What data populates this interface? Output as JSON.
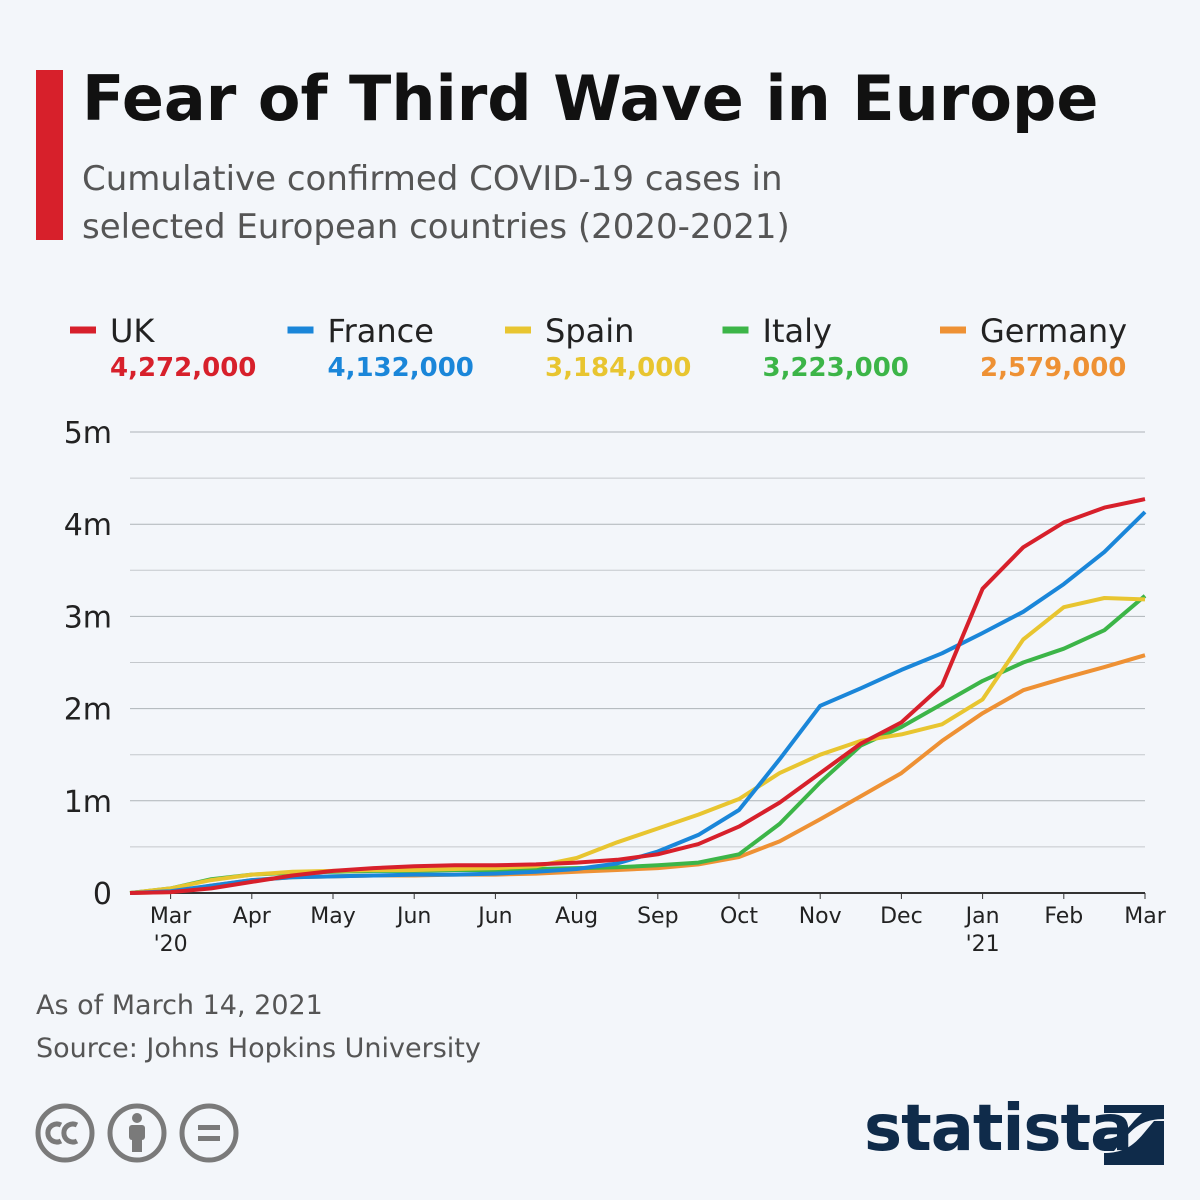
{
  "chart_data": {
    "type": "line",
    "title": "Fear of Third Wave in Europe",
    "subtitle": "Cumulative confirmed COVID-19 cases in selected European countries (2020-2021)",
    "categories": [
      null,
      "Mar '20",
      null,
      "Apr",
      null,
      "May",
      null,
      "Jun",
      null,
      "Jun",
      null,
      "Aug",
      null,
      "Sep",
      null,
      "Oct",
      null,
      "Nov",
      null,
      "Dec",
      null,
      "Jan '21",
      null,
      "Feb",
      null,
      "Mar"
    ],
    "series": [
      {
        "name": "UK",
        "color": "#d7202b",
        "legend_value": "4,272,000",
        "values": [
          0,
          10000,
          50000,
          120000,
          190000,
          240000,
          270000,
          290000,
          300000,
          300000,
          310000,
          330000,
          360000,
          420000,
          530000,
          720000,
          980000,
          1300000,
          1620000,
          1850000,
          2250000,
          3300000,
          3750000,
          4020000,
          4180000,
          4272000
        ]
      },
      {
        "name": "France",
        "color": "#1a86d9",
        "legend_value": "4,132,000",
        "values": [
          0,
          20000,
          80000,
          140000,
          170000,
          180000,
          190000,
          200000,
          200000,
          210000,
          230000,
          260000,
          320000,
          450000,
          630000,
          900000,
          1450000,
          2030000,
          2220000,
          2420000,
          2600000,
          2820000,
          3050000,
          3350000,
          3700000,
          4132000
        ]
      },
      {
        "name": "Spain",
        "color": "#e8c530",
        "legend_value": "3,184,000",
        "values": [
          0,
          50000,
          140000,
          200000,
          230000,
          240000,
          250000,
          250000,
          260000,
          270000,
          290000,
          380000,
          550000,
          700000,
          850000,
          1020000,
          1300000,
          1500000,
          1650000,
          1720000,
          1830000,
          2100000,
          2750000,
          3100000,
          3200000,
          3184000
        ]
      },
      {
        "name": "Italy",
        "color": "#3cb548",
        "legend_value": "3,223,000",
        "values": [
          0,
          50000,
          150000,
          200000,
          220000,
          230000,
          240000,
          240000,
          250000,
          250000,
          260000,
          270000,
          280000,
          300000,
          330000,
          420000,
          750000,
          1200000,
          1600000,
          1800000,
          2050000,
          2300000,
          2500000,
          2650000,
          2850000,
          3223000
        ]
      },
      {
        "name": "Germany",
        "color": "#ee9134",
        "legend_value": "2,579,000",
        "values": [
          0,
          10000,
          80000,
          140000,
          170000,
          180000,
          190000,
          190000,
          200000,
          200000,
          210000,
          230000,
          250000,
          270000,
          310000,
          390000,
          560000,
          800000,
          1050000,
          1300000,
          1650000,
          1950000,
          2200000,
          2330000,
          2450000,
          2579000
        ]
      }
    ],
    "ylim": [
      0,
      5000000
    ],
    "yticks": [
      0,
      {
        "value": 1000000,
        "label": "1m"
      },
      {
        "value": 2000000,
        "label": "2m"
      },
      {
        "value": 3000000,
        "label": "3m"
      },
      {
        "value": 4000000,
        "label": "4m"
      },
      {
        "value": 5000000,
        "label": "5m"
      }
    ],
    "minor_gridlines": [
      500000,
      1500000,
      2500000,
      3500000,
      4500000
    ],
    "grid": true,
    "note": "As of March 14, 2021",
    "source": "Source: Johns Hopkins University",
    "brand": "statista"
  }
}
